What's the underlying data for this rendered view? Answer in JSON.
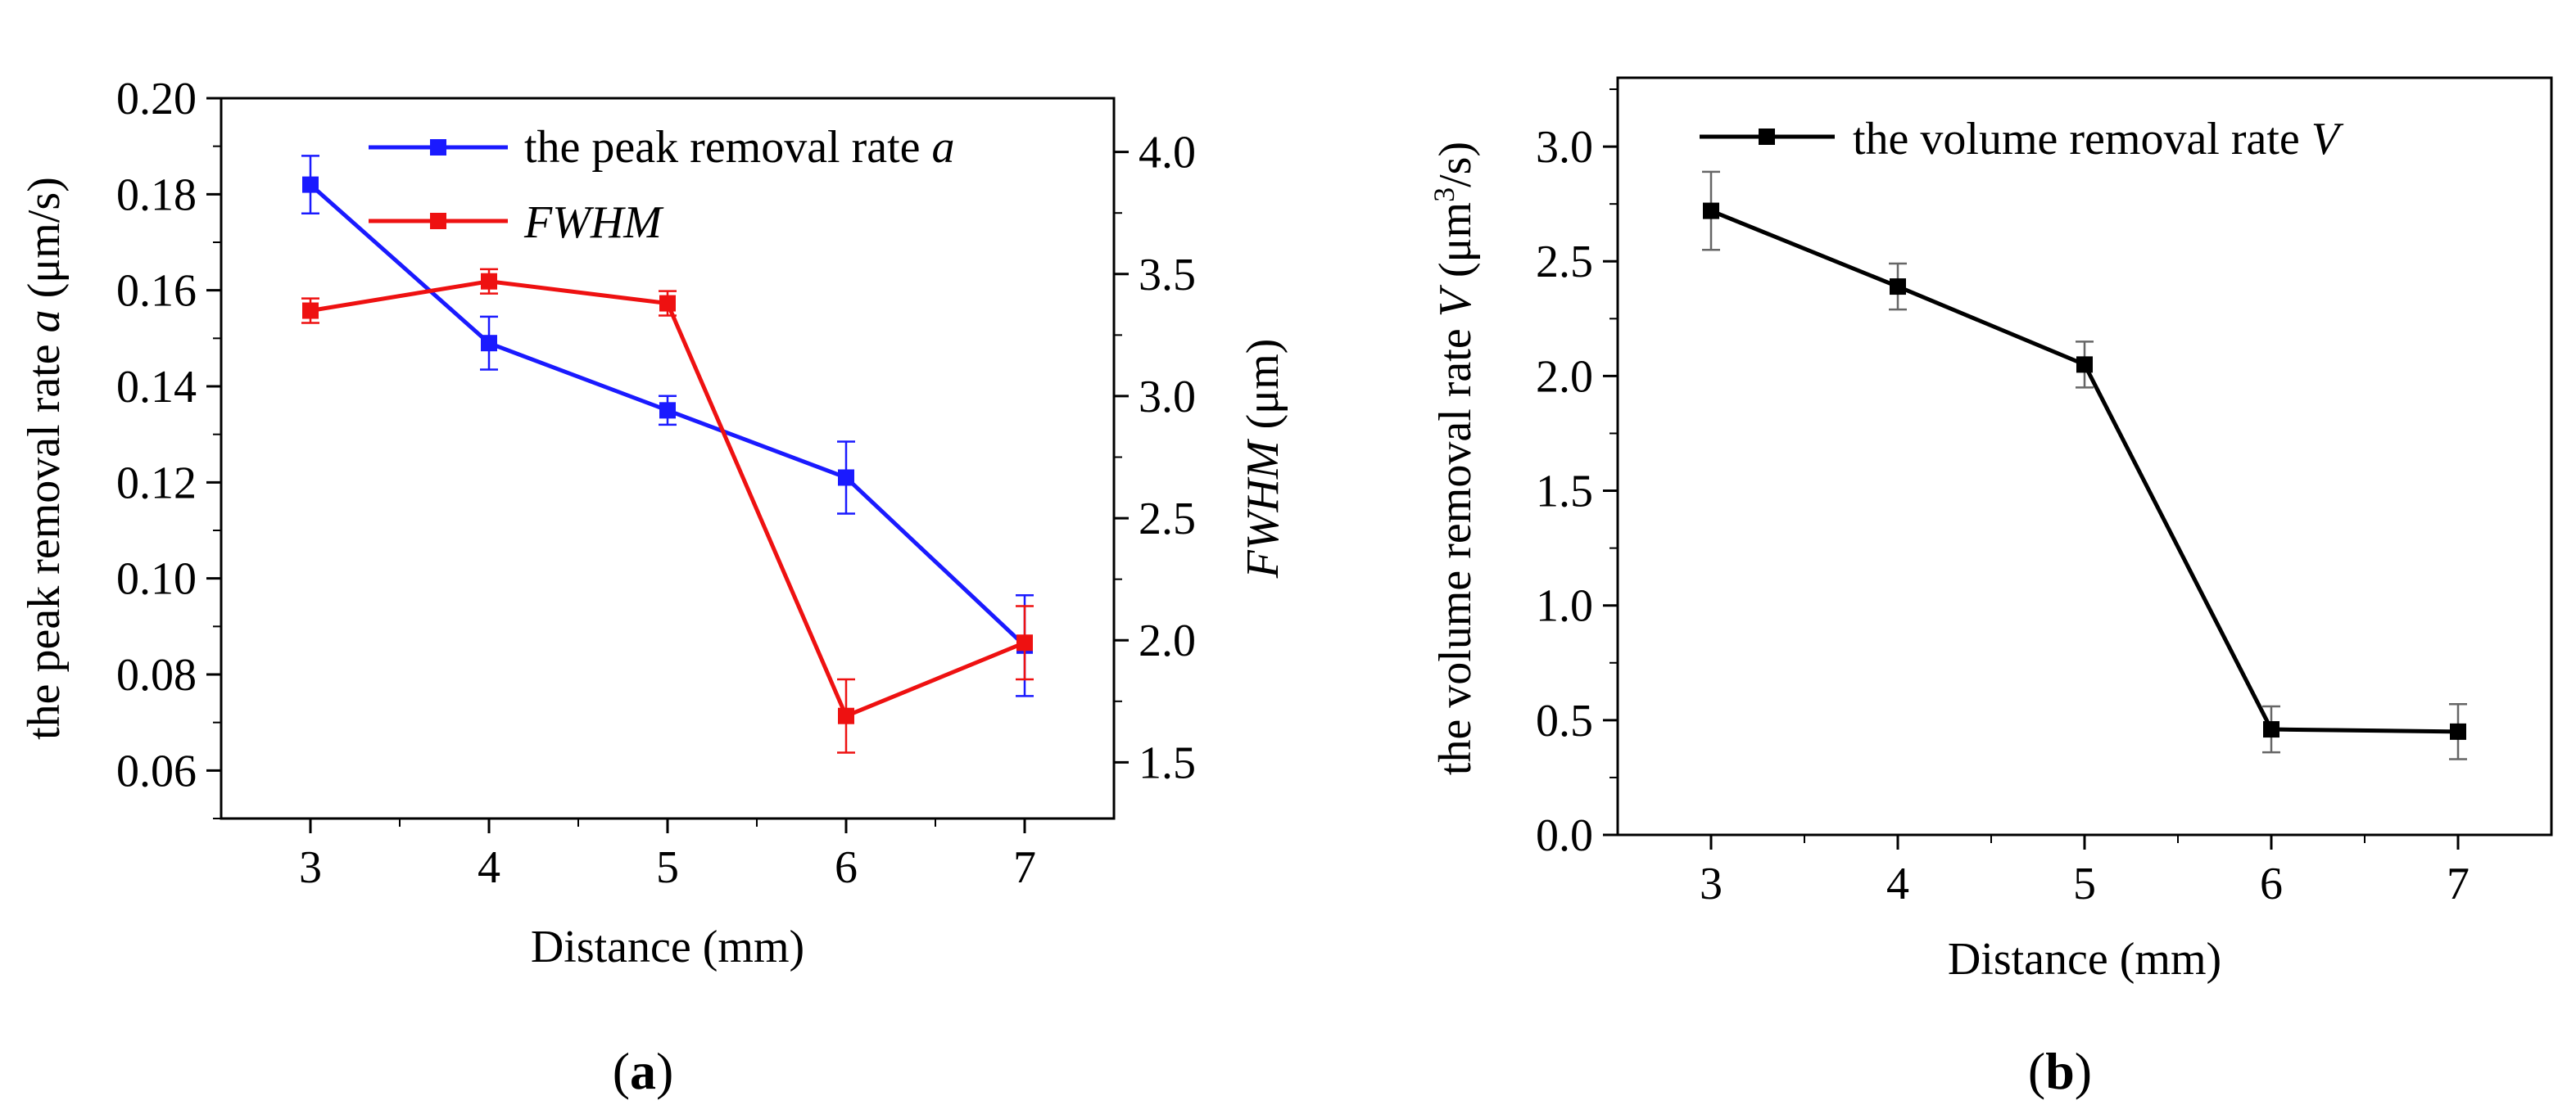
{
  "chart_data": [
    {
      "type": "line",
      "panel_label": "a",
      "xlabel": "Distance (mm)",
      "ylabel_prefix": "the peak removal rate ",
      "ylabel_var": "a",
      "ylabel_suffix": " (μm/s)",
      "y2label_var": "FWHM",
      "y2label_suffix": " (μm)",
      "x": [
        3,
        4,
        5,
        6,
        7
      ],
      "xlim": [
        2.5,
        7.5
      ],
      "xticks": [
        "3",
        "4",
        "5",
        "6",
        "7"
      ],
      "ylim": [
        0.05,
        0.2
      ],
      "yticks": [
        "0.06",
        "0.08",
        "0.10",
        "0.12",
        "0.14",
        "0.16",
        "0.18",
        "0.20"
      ],
      "y2lim": [
        1.27,
        4.22
      ],
      "y2ticks": [
        "1.5",
        "2.0",
        "2.5",
        "3.0",
        "3.5",
        "4.0"
      ],
      "legend_position": "top-right",
      "series": [
        {
          "name_prefix": "the peak removal rate ",
          "name_var": "a",
          "axis": "left",
          "color": "#1a1aff",
          "values": [
            0.182,
            0.149,
            0.135,
            0.121,
            0.086
          ],
          "errors": [
            0.006,
            0.0055,
            0.003,
            0.0075,
            0.0105
          ]
        },
        {
          "name_var": "FWHM",
          "axis": "right",
          "color": "#ee1111",
          "values": [
            3.35,
            3.47,
            3.38,
            1.69,
            1.99
          ],
          "errors": [
            0.05,
            0.05,
            0.05,
            0.15,
            0.15
          ]
        }
      ]
    },
    {
      "type": "line",
      "panel_label": "b",
      "xlabel": "Distance (mm)",
      "ylabel_prefix": "the volume removal rate ",
      "ylabel_var": "V",
      "ylabel_unit_open": " (μm",
      "ylabel_unit_sup": "3",
      "ylabel_unit_close": "/s)",
      "x": [
        3,
        4,
        5,
        6,
        7
      ],
      "xlim": [
        2.5,
        7.5
      ],
      "xticks": [
        "3",
        "4",
        "5",
        "6",
        "7"
      ],
      "ylim": [
        0,
        3.3
      ],
      "yticks": [
        "0.0",
        "0.5",
        "1.0",
        "1.5",
        "2.0",
        "2.5",
        "3.0"
      ],
      "legend_position": "top-right",
      "series": [
        {
          "name_prefix": "the volume removal rate ",
          "name_var": "V",
          "color": "#000000",
          "values": [
            2.72,
            2.39,
            2.05,
            0.46,
            0.45
          ],
          "errors": [
            0.17,
            0.1,
            0.1,
            0.1,
            0.12
          ]
        }
      ]
    }
  ]
}
